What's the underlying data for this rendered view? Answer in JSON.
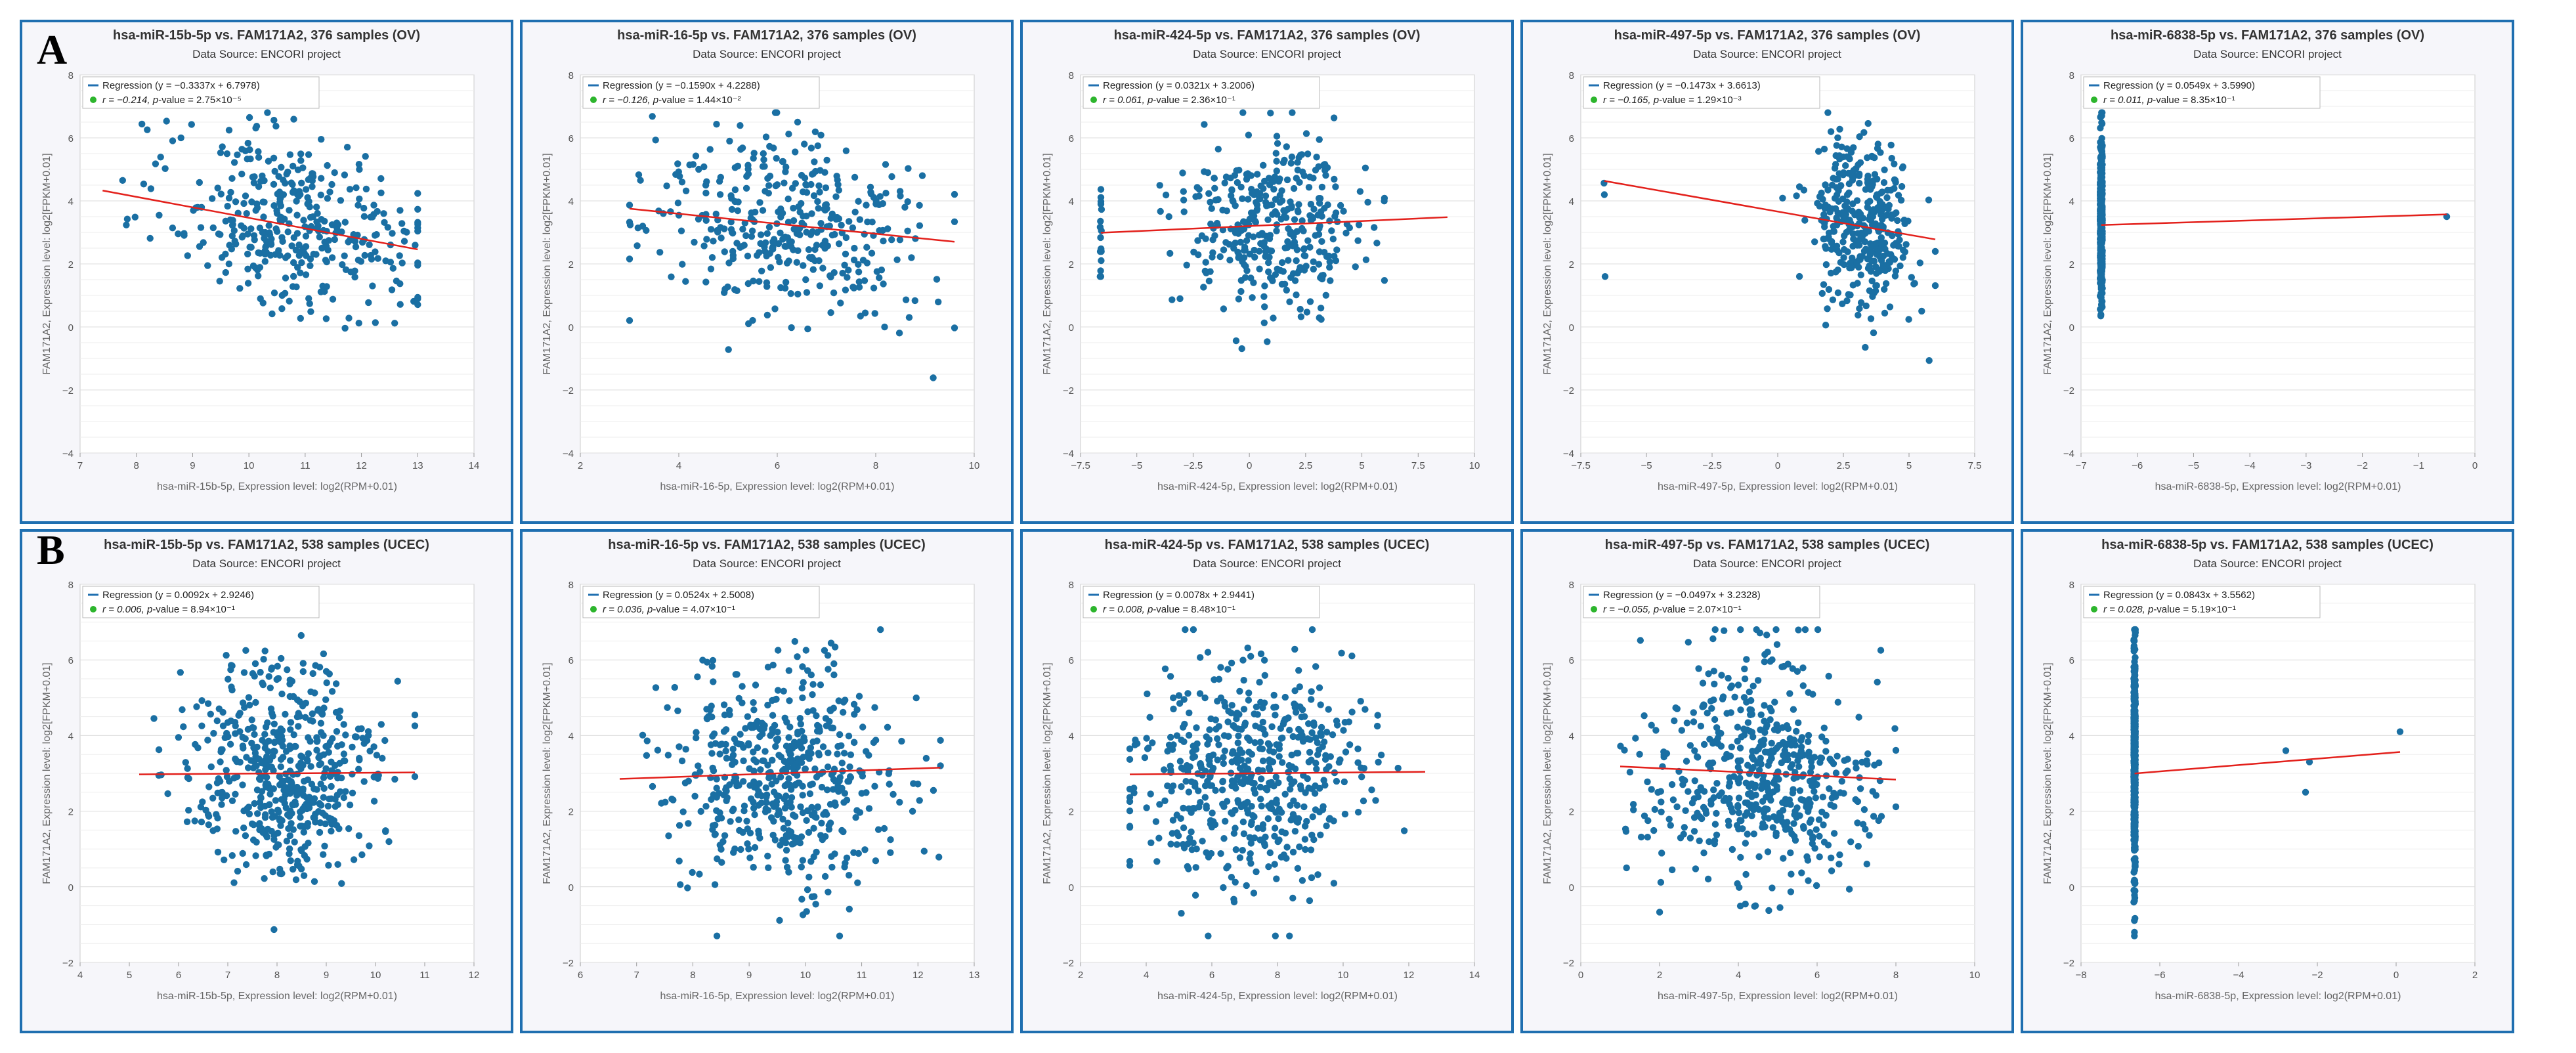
{
  "panel_labels": [
    "A",
    "B"
  ],
  "colors": {
    "frame": "#1f6fb0",
    "point": "#1a6fa3",
    "line": "#e3201b",
    "grid": "#e6e6e6",
    "legend_dot": "#2db52d",
    "text": "#333333"
  },
  "chart_data": [
    {
      "type": "scatter",
      "row": 0,
      "col": 0,
      "title": "hsa-miR-15b-5p vs. FAM171A2, 376 samples (OV)",
      "subtitle": "Data Source: ENCORI project",
      "xlabel": "hsa-miR-15b-5p, Expression level: log2(RPM+0.01)",
      "ylabel": "FAM171A2, Expression level: log2[FPKM+0.01]",
      "xlim": [
        7,
        14
      ],
      "ylim": [
        -4,
        8
      ],
      "xticks": [
        7,
        8,
        9,
        10,
        11,
        12,
        13,
        14
      ],
      "yticks": [
        -4,
        -2,
        0,
        2,
        4,
        6,
        8
      ],
      "legend": {
        "regression": "Regression (y = −0.3337x + 6.7978)",
        "r": "r = −0.214, ",
        "pkey": "p",
        "pval": "-value = 2.75×10⁻⁵"
      },
      "regression": {
        "slope": -0.3337,
        "intercept": 6.7978,
        "x_range": [
          7.4,
          13.0
        ]
      },
      "n": 376,
      "dist": {
        "mode": "normal",
        "mx": 10.8,
        "sx": 1.1,
        "x_min": 7.4,
        "x_max": 13.0,
        "y_sd": 1.35,
        "y_min": -2.1,
        "y_max": 6.8
      }
    },
    {
      "type": "scatter",
      "row": 0,
      "col": 1,
      "title": "hsa-miR-16-5p vs. FAM171A2, 376 samples (OV)",
      "subtitle": "Data Source: ENCORI project",
      "xlabel": "hsa-miR-16-5p, Expression level: log2(RPM+0.01)",
      "ylabel": "FAM171A2, Expression level: log2[FPKM+0.01]",
      "xlim": [
        2,
        10
      ],
      "ylim": [
        -4,
        8
      ],
      "xticks": [
        2,
        4,
        6,
        8,
        10
      ],
      "yticks": [
        -4,
        -2,
        0,
        2,
        4,
        6,
        8
      ],
      "legend": {
        "regression": "Regression (y = −0.1590x + 4.2288)",
        "r": "r = −0.126, ",
        "pkey": "p",
        "pval": "-value = 1.44×10⁻²"
      },
      "regression": {
        "slope": -0.159,
        "intercept": 4.2288,
        "x_range": [
          3.0,
          9.6
        ]
      },
      "n": 376,
      "dist": {
        "mode": "normal",
        "mx": 6.2,
        "sx": 1.35,
        "x_min": 3.0,
        "x_max": 9.6,
        "y_sd": 1.35,
        "y_min": -2.1,
        "y_max": 6.8
      }
    },
    {
      "type": "scatter",
      "row": 0,
      "col": 2,
      "title": "hsa-miR-424-5p vs. FAM171A2, 376 samples (OV)",
      "subtitle": "Data Source: ENCORI project",
      "xlabel": "hsa-miR-424-5p, Expression level: log2(RPM+0.01)",
      "ylabel": "FAM171A2, Expression level: log2[FPKM+0.01]",
      "xlim": [
        -7.5,
        10
      ],
      "ylim": [
        -4,
        8
      ],
      "xticks": [
        -7.5,
        -5,
        -2.5,
        0,
        2.5,
        5,
        7.5,
        10
      ],
      "yticks": [
        -4,
        -2,
        0,
        2,
        4,
        6,
        8
      ],
      "legend": {
        "regression": "Regression (y = 0.0321x + 3.2006)",
        "r": "r = 0.061, ",
        "pkey": "p",
        "pval": "-value = 2.36×10⁻¹"
      },
      "regression": {
        "slope": 0.0321,
        "intercept": 3.2006,
        "x_range": [
          -6.6,
          8.8
        ]
      },
      "n": 376,
      "dist": {
        "mode": "column",
        "col_x": -6.6,
        "col_n": 18,
        "mx": 1.2,
        "sx": 1.9,
        "x_min": -4.5,
        "x_max": 6.0,
        "y_sd": 1.35,
        "y_min": -2.1,
        "y_max": 6.8
      }
    },
    {
      "type": "scatter",
      "row": 0,
      "col": 3,
      "title": "hsa-miR-497-5p vs. FAM171A2, 376 samples (OV)",
      "subtitle": "Data Source: ENCORI project",
      "xlabel": "hsa-miR-497-5p, Expression level: log2(RPM+0.01)",
      "ylabel": "FAM171A2, Expression level: log2[FPKM+0.01]",
      "xlim": [
        -7.5,
        7.5
      ],
      "ylim": [
        -4,
        8
      ],
      "xticks": [
        -7.5,
        -5,
        -2.5,
        0,
        2.5,
        5,
        7.5
      ],
      "yticks": [
        -4,
        -2,
        0,
        2,
        4,
        6,
        8
      ],
      "legend": {
        "regression": "Regression (y = −0.1473x + 3.6613)",
        "r": "r = −0.165, ",
        "pkey": "p",
        "pval": "-value = 1.29×10⁻³"
      },
      "regression": {
        "slope": -0.1473,
        "intercept": 3.6613,
        "x_range": [
          -6.6,
          6.0
        ]
      },
      "n": 376,
      "dist": {
        "mode": "column",
        "col_x": -6.6,
        "col_n": 3,
        "mx": 3.2,
        "sx": 1.0,
        "x_min": -1.0,
        "x_max": 6.0,
        "y_sd": 1.35,
        "y_min": -2.1,
        "y_max": 6.8
      }
    },
    {
      "type": "scatter",
      "row": 0,
      "col": 4,
      "title": "hsa-miR-6838-5p vs. FAM171A2, 376 samples (OV)",
      "subtitle": "Data Source: ENCORI project",
      "xlabel": "hsa-miR-6838-5p, Expression level: log2(RPM+0.01)",
      "ylabel": "FAM171A2, Expression level: log2[FPKM+0.01]",
      "xlim": [
        -7,
        0
      ],
      "ylim": [
        -4,
        8
      ],
      "xticks": [
        -7,
        -6,
        -5,
        -4,
        -3,
        -2,
        -1,
        0
      ],
      "yticks": [
        -4,
        -2,
        0,
        2,
        4,
        6,
        8
      ],
      "legend": {
        "regression": "Regression (y = 0.0549x + 3.5990)",
        "r": "r = 0.011, ",
        "pkey": "p",
        "pval": "-value = 8.35×10⁻¹"
      },
      "regression": {
        "slope": 0.0549,
        "intercept": 3.599,
        "x_range": [
          -6.64,
          -0.5
        ]
      },
      "n": 376,
      "dist": {
        "mode": "single",
        "col_x": -6.64,
        "extra": [
          [
            -0.5,
            3.5
          ]
        ],
        "y_sd": 1.35,
        "y_min": -2.1,
        "y_max": 6.8
      }
    },
    {
      "type": "scatter",
      "row": 1,
      "col": 0,
      "title": "hsa-miR-15b-5p vs. FAM171A2, 538 samples (UCEC)",
      "subtitle": "Data Source: ENCORI project",
      "xlabel": "hsa-miR-15b-5p, Expression level: log2(RPM+0.01)",
      "ylabel": "FAM171A2, Expression level: log2[FPKM+0.01]",
      "xlim": [
        4,
        12
      ],
      "ylim": [
        -2,
        8
      ],
      "xticks": [
        4,
        5,
        6,
        7,
        8,
        9,
        10,
        11,
        12
      ],
      "yticks": [
        -2,
        0,
        2,
        4,
        6,
        8
      ],
      "legend": {
        "regression": "Regression (y = 0.0092x + 2.9246)",
        "r": "r = 0.006, ",
        "pkey": "p",
        "pval": "-value = 8.94×10⁻¹"
      },
      "regression": {
        "slope": 0.0092,
        "intercept": 2.9246,
        "x_range": [
          5.2,
          10.8
        ]
      },
      "n": 538,
      "dist": {
        "mode": "normal",
        "mx": 8.1,
        "sx": 0.95,
        "x_min": 5.2,
        "x_max": 10.8,
        "y_sd": 1.45,
        "y_min": -1.3,
        "y_max": 6.8
      }
    },
    {
      "type": "scatter",
      "row": 1,
      "col": 1,
      "title": "hsa-miR-16-5p vs. FAM171A2, 538 samples (UCEC)",
      "subtitle": "Data Source: ENCORI project",
      "xlabel": "hsa-miR-16-5p, Expression level: log2(RPM+0.01)",
      "ylabel": "FAM171A2, Expression level: log2[FPKM+0.01]",
      "xlim": [
        6,
        13
      ],
      "ylim": [
        -2,
        8
      ],
      "xticks": [
        6,
        7,
        8,
        9,
        10,
        11,
        12,
        13
      ],
      "yticks": [
        -2,
        0,
        2,
        4,
        6,
        8
      ],
      "legend": {
        "regression": "Regression (y = 0.0524x + 2.5008)",
        "r": "r = 0.036, ",
        "pkey": "p",
        "pval": "-value = 4.07×10⁻¹"
      },
      "regression": {
        "slope": 0.0524,
        "intercept": 2.5008,
        "x_range": [
          6.7,
          12.4
        ]
      },
      "n": 538,
      "dist": {
        "mode": "normal",
        "mx": 9.6,
        "sx": 0.95,
        "x_min": 6.7,
        "x_max": 12.4,
        "y_sd": 1.45,
        "y_min": -1.3,
        "y_max": 6.8
      }
    },
    {
      "type": "scatter",
      "row": 1,
      "col": 2,
      "title": "hsa-miR-424-5p vs. FAM171A2, 538 samples (UCEC)",
      "subtitle": "Data Source: ENCORI project",
      "xlabel": "hsa-miR-424-5p, Expression level: log2(RPM+0.01)",
      "ylabel": "FAM171A2, Expression level: log2[FPKM+0.01]",
      "xlim": [
        2,
        14
      ],
      "ylim": [
        -2,
        8
      ],
      "xticks": [
        2,
        4,
        6,
        8,
        10,
        12,
        14
      ],
      "yticks": [
        -2,
        0,
        2,
        4,
        6,
        8
      ],
      "legend": {
        "regression": "Regression (y = 0.0078x + 2.9441)",
        "r": "r = 0.008, ",
        "pkey": "p",
        "pval": "-value = 8.48×10⁻¹"
      },
      "regression": {
        "slope": 0.0078,
        "intercept": 2.9441,
        "x_range": [
          3.5,
          12.5
        ]
      },
      "n": 538,
      "dist": {
        "mode": "normal",
        "mx": 7.2,
        "sx": 1.7,
        "x_min": 3.5,
        "x_max": 12.5,
        "y_sd": 1.45,
        "y_min": -1.3,
        "y_max": 6.8
      }
    },
    {
      "type": "scatter",
      "row": 1,
      "col": 3,
      "title": "hsa-miR-497-5p vs. FAM171A2, 538 samples (UCEC)",
      "subtitle": "Data Source: ENCORI project",
      "xlabel": "hsa-miR-497-5p, Expression level: log2(RPM+0.01)",
      "ylabel": "FAM171A2, Expression level: log2[FPKM+0.01]",
      "xlim": [
        0,
        10
      ],
      "ylim": [
        -2,
        8
      ],
      "xticks": [
        0,
        2,
        4,
        6,
        8,
        10
      ],
      "yticks": [
        -2,
        0,
        2,
        4,
        6,
        8
      ],
      "legend": {
        "regression": "Regression (y = −0.0497x + 3.2328)",
        "r": "r = −0.055, ",
        "pkey": "p",
        "pval": "-value = 2.07×10⁻¹"
      },
      "regression": {
        "slope": -0.0497,
        "intercept": 3.2328,
        "x_range": [
          1.0,
          8.0
        ]
      },
      "n": 538,
      "dist": {
        "mode": "normal",
        "mx": 4.6,
        "sx": 1.45,
        "x_min": 0.9,
        "x_max": 8.0,
        "y_sd": 1.45,
        "y_min": -1.3,
        "y_max": 6.8
      }
    },
    {
      "type": "scatter",
      "row": 1,
      "col": 4,
      "title": "hsa-miR-6838-5p vs. FAM171A2, 538 samples (UCEC)",
      "subtitle": "Data Source: ENCORI project",
      "xlabel": "hsa-miR-6838-5p, Expression level: log2(RPM+0.01)",
      "ylabel": "FAM171A2, Expression level: log2[FPKM+0.01]",
      "xlim": [
        -8,
        2
      ],
      "ylim": [
        -2,
        8
      ],
      "xticks": [
        -8,
        -6,
        -4,
        -2,
        0,
        2
      ],
      "yticks": [
        -2,
        0,
        2,
        4,
        6,
        8
      ],
      "legend": {
        "regression": "Regression (y = 0.0843x + 3.5562)",
        "r": "r = 0.028, ",
        "pkey": "p",
        "pval": "-value = 5.19×10⁻¹"
      },
      "regression": {
        "slope": 0.0843,
        "intercept": 3.5562,
        "x_range": [
          -6.64,
          0.1
        ]
      },
      "n": 538,
      "dist": {
        "mode": "single",
        "col_x": -6.64,
        "extra": [
          [
            -2.8,
            3.6
          ],
          [
            -2.2,
            3.3
          ],
          [
            -2.3,
            2.5
          ],
          [
            0.1,
            4.1
          ]
        ],
        "y_sd": 1.45,
        "y_min": -1.3,
        "y_max": 6.8
      }
    }
  ]
}
